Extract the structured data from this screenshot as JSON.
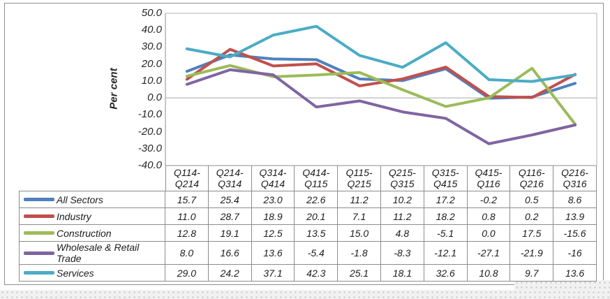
{
  "chart_data": {
    "type": "line",
    "title": "",
    "xlabel": "",
    "ylabel": "Per cent",
    "ylim": [
      -40,
      50
    ],
    "y_tick_step": 10,
    "y_tick_labels": [
      "50.0",
      "40.0",
      "30.0",
      "20.0",
      "10.0",
      "0.0",
      "-10.0",
      "-20.0",
      "-30.0",
      "-40.0"
    ],
    "grid": "zero-line-only",
    "legend_position": "data-table-left-column",
    "categories": [
      "Q114-Q214",
      "Q214-Q314",
      "Q314-Q414",
      "Q414-Q115",
      "Q115-Q215",
      "Q215-Q315",
      "Q315-Q415",
      "Q415-Q116",
      "Q116-Q216",
      "Q216-Q316"
    ],
    "series": [
      {
        "name": "All Sectors",
        "color": "#4F81BD",
        "values": [
          15.7,
          25.4,
          23.0,
          22.6,
          11.2,
          10.2,
          17.2,
          -0.2,
          0.5,
          8.6
        ]
      },
      {
        "name": "Industry",
        "color": "#C0504D",
        "values": [
          11.0,
          28.7,
          18.9,
          20.1,
          7.1,
          11.2,
          18.2,
          0.8,
          0.2,
          13.9
        ]
      },
      {
        "name": "Construction",
        "color": "#9BBB59",
        "values": [
          12.8,
          19.1,
          12.5,
          13.5,
          15.0,
          4.8,
          -5.1,
          0.0,
          17.5,
          -15.6
        ]
      },
      {
        "name": "Wholesale & Retail Trade",
        "color": "#8064A2",
        "values": [
          8.0,
          16.6,
          13.6,
          -5.4,
          -1.8,
          -8.3,
          -12.1,
          -27.1,
          -21.9,
          -16
        ]
      },
      {
        "name": "Services",
        "color": "#4BACC6",
        "values": [
          29.0,
          24.2,
          37.1,
          42.3,
          25.1,
          18.1,
          32.6,
          10.8,
          9.7,
          13.6
        ]
      }
    ]
  },
  "data_table": {
    "column_headers": [
      "Q114-Q214",
      "Q214-Q314",
      "Q314-Q414",
      "Q414-Q115",
      "Q115-Q215",
      "Q215-Q315",
      "Q315-Q415",
      "Q415-Q116",
      "Q116-Q216",
      "Q216-Q316"
    ],
    "rows": [
      {
        "label": "All Sectors",
        "color": "#4F81BD",
        "values": [
          "15.7",
          "25.4",
          "23.0",
          "22.6",
          "11.2",
          "10.2",
          "17.2",
          "-0.2",
          "0.5",
          "8.6"
        ]
      },
      {
        "label": "Industry",
        "color": "#C0504D",
        "values": [
          "11.0",
          "28.7",
          "18.9",
          "20.1",
          "7.1",
          "11.2",
          "18.2",
          "0.8",
          "0.2",
          "13.9"
        ]
      },
      {
        "label": "Construction",
        "color": "#9BBB59",
        "values": [
          "12.8",
          "19.1",
          "12.5",
          "13.5",
          "15.0",
          "4.8",
          "-5.1",
          "0.0",
          "17.5",
          "-15.6"
        ]
      },
      {
        "label": "Wholesale & Retail Trade",
        "color": "#8064A2",
        "values": [
          "8.0",
          "16.6",
          "13.6",
          "-5.4",
          "-1.8",
          "-8.3",
          "-12.1",
          "-27.1",
          "-21.9",
          "-16"
        ]
      },
      {
        "label": "Services",
        "color": "#4BACC6",
        "values": [
          "29.0",
          "24.2",
          "37.1",
          "42.3",
          "25.1",
          "18.1",
          "32.6",
          "10.8",
          "9.7",
          "13.6"
        ]
      }
    ]
  },
  "colors": {
    "axis": "#8c8c8c",
    "plot_border": "#b0b0b0",
    "zero_line": "#a6a6a6",
    "table_border": "#8c8c8c"
  }
}
